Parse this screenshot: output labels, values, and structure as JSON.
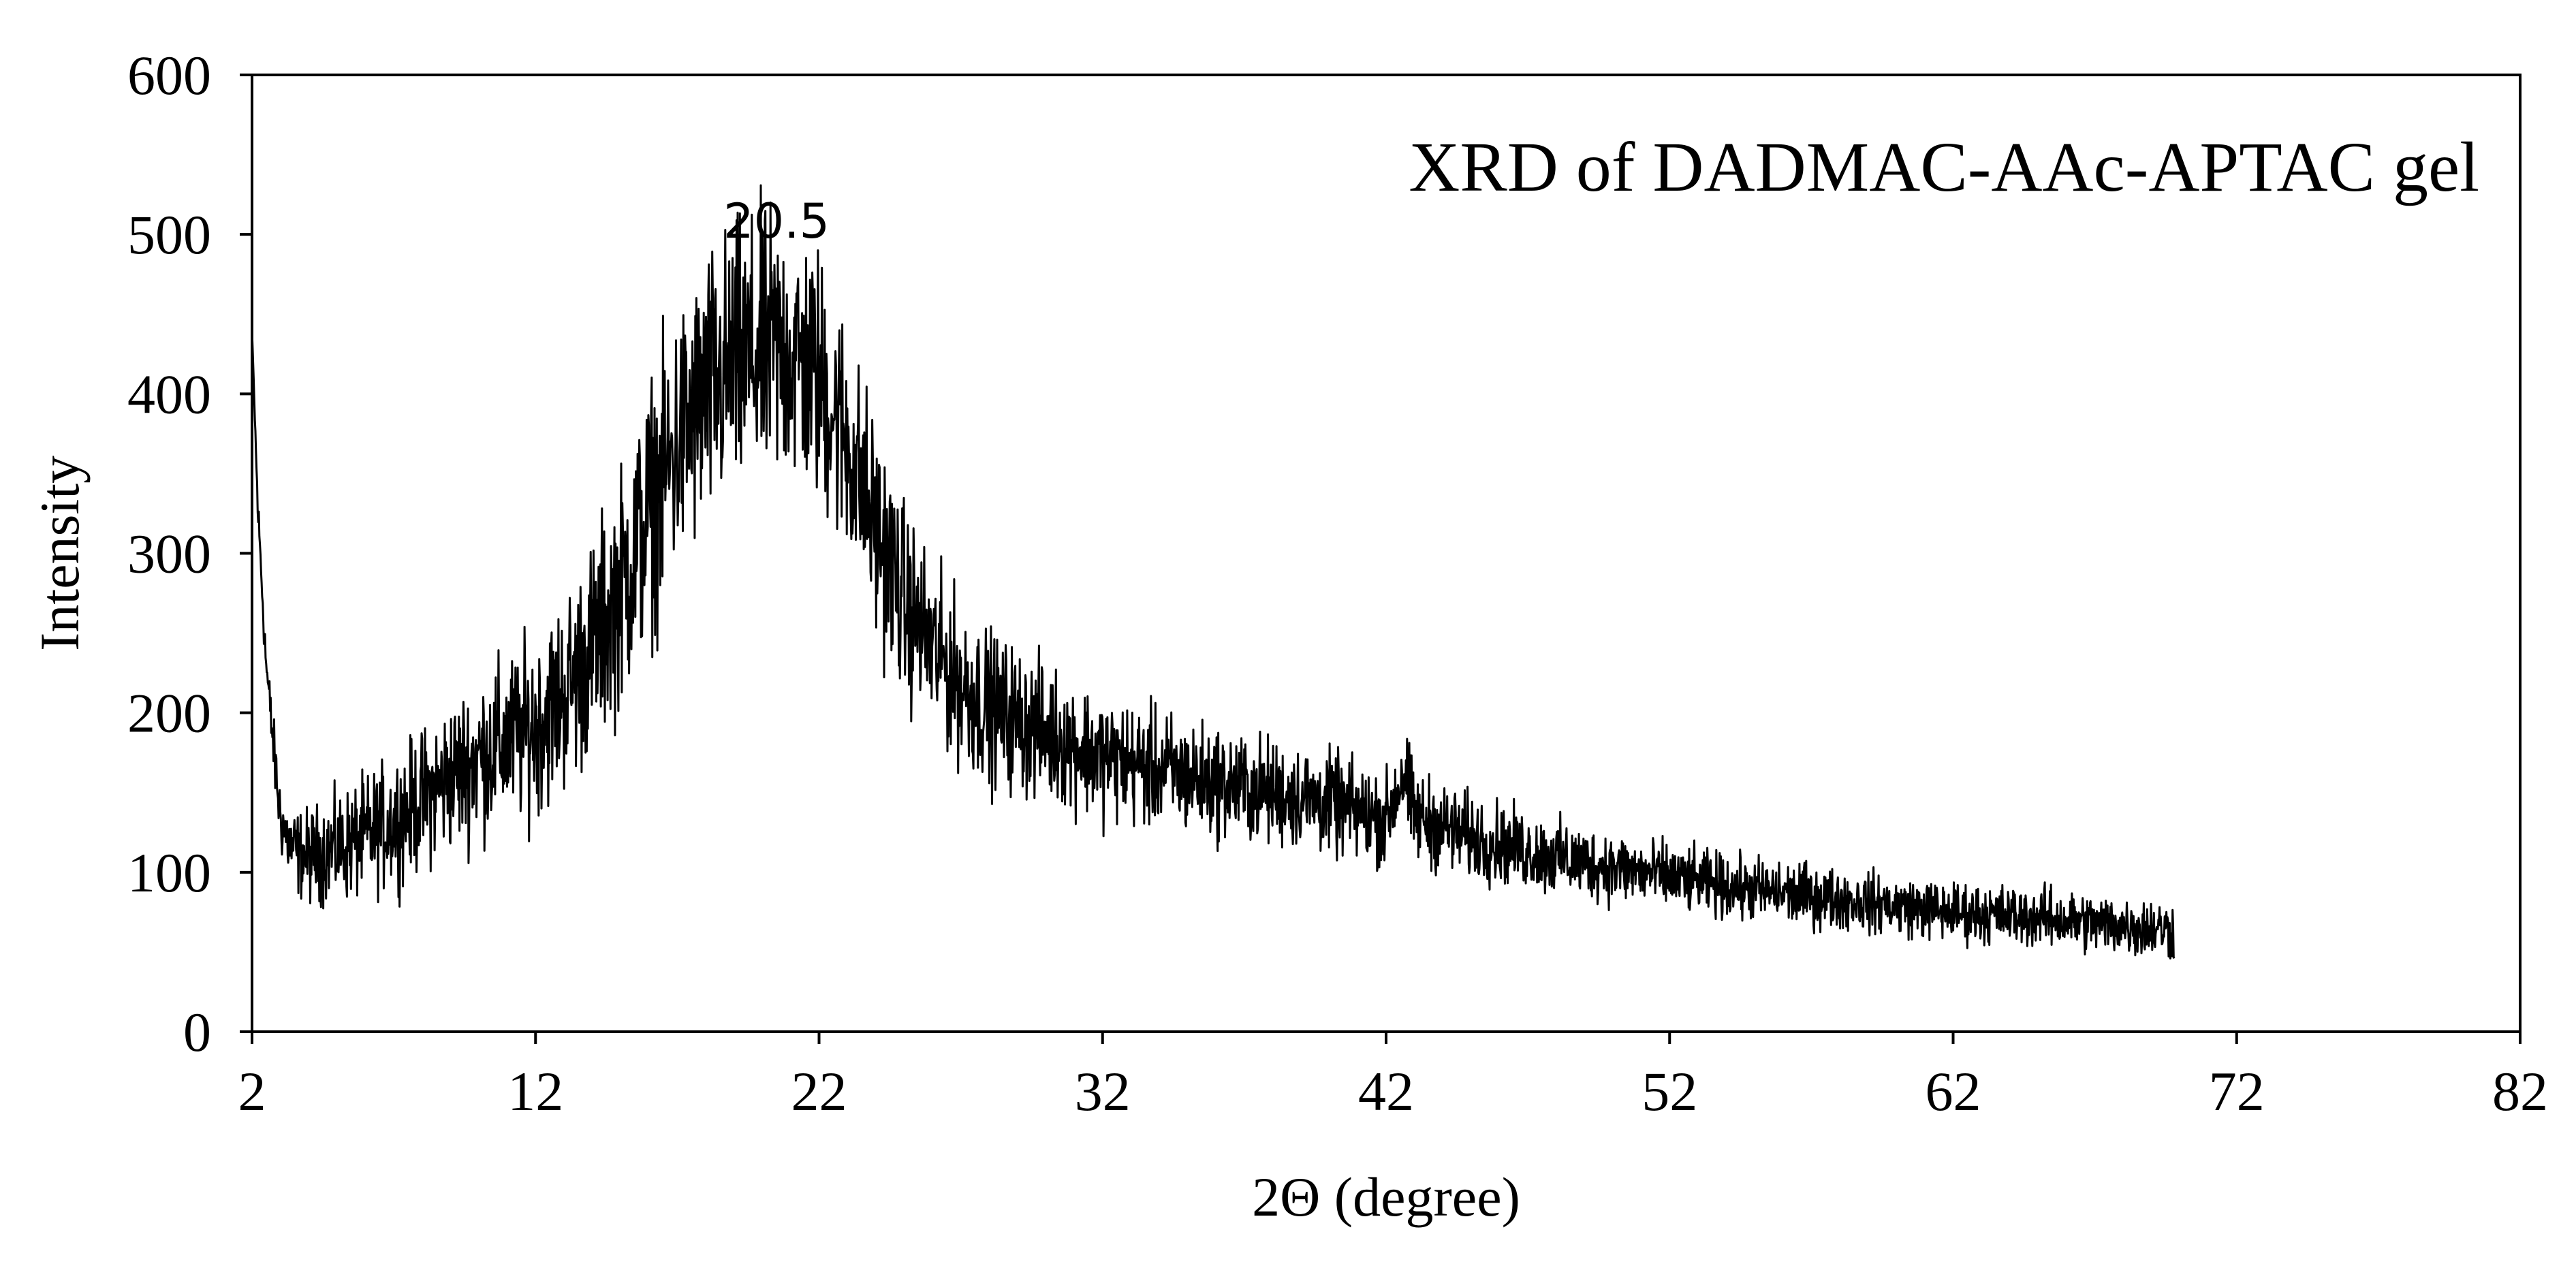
{
  "chart_data": {
    "type": "line",
    "title": "XRD of DADMAC-AAc-APTAC gel",
    "xlabel": "2Θ (degree)",
    "ylabel": "Intensity",
    "xlim": [
      2,
      82
    ],
    "ylim": [
      0,
      600
    ],
    "xticks": [
      2,
      12,
      22,
      32,
      42,
      52,
      62,
      72,
      82
    ],
    "yticks": [
      0,
      100,
      200,
      300,
      400,
      500,
      600
    ],
    "grid": false,
    "legend": "none",
    "annotations": [
      {
        "text": "20.5",
        "x": 20.5,
        "y": 500
      }
    ],
    "series": [
      {
        "color": "#000000",
        "noise_note": "",
        "x": [
          2,
          2.2,
          2.5,
          2.8,
          3,
          3.3,
          3.6,
          4,
          5,
          6,
          7,
          8,
          9,
          10,
          11,
          12,
          13,
          14,
          15,
          16,
          17,
          18,
          19,
          20,
          20.5,
          21,
          22,
          23,
          24,
          25,
          26,
          27,
          28,
          29,
          30,
          31,
          32,
          33,
          34,
          35,
          36,
          37,
          38,
          39,
          40,
          41,
          42,
          42.6,
          43,
          44,
          45,
          46,
          47,
          48,
          49,
          50,
          51,
          52,
          53,
          54,
          55,
          56,
          57,
          58,
          59,
          60,
          61,
          62,
          63,
          64,
          65,
          66,
          67,
          68,
          69,
          69.8
        ],
        "y": [
          440,
          330,
          230,
          170,
          135,
          118,
          112,
          110,
          115,
          122,
          132,
          145,
          160,
          172,
          182,
          192,
          212,
          240,
          278,
          325,
          368,
          398,
          418,
          425,
          428,
          425,
          410,
          370,
          315,
          270,
          240,
          218,
          203,
          195,
          188,
          180,
          172,
          168,
          164,
          160,
          156,
          153,
          150,
          147,
          143,
          138,
          133,
          162,
          135,
          128,
          122,
          118,
          113,
          109,
          106,
          103,
          100,
          97,
          94,
          91,
          89,
          87,
          85,
          83,
          81,
          79,
          77,
          75,
          74,
          73,
          72,
          70,
          68,
          67,
          65,
          64
        ],
        "noise_amplitude": [
          0,
          10,
          12,
          15,
          18,
          18,
          20,
          22,
          25,
          28,
          30,
          32,
          35,
          38,
          40,
          42,
          45,
          50,
          55,
          60,
          62,
          65,
          65,
          65,
          65,
          62,
          60,
          55,
          50,
          45,
          40,
          38,
          36,
          34,
          32,
          30,
          30,
          28,
          28,
          27,
          26,
          25,
          25,
          24,
          24,
          23,
          22,
          25,
          22,
          21,
          20,
          19,
          18,
          18,
          17,
          17,
          16,
          16,
          15,
          15,
          15,
          15,
          15,
          14,
          14,
          14,
          14,
          14,
          14,
          14,
          14,
          14,
          14,
          14,
          14,
          14
        ]
      }
    ]
  }
}
